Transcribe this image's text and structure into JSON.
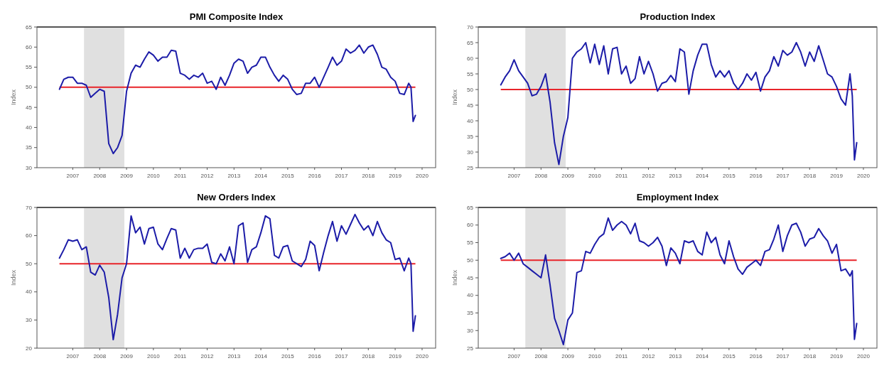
{
  "chart_data": [
    {
      "type": "line",
      "title": "PMI Composite Index",
      "ylabel": "Index",
      "grid": false,
      "x": [
        "2007-01",
        "2007-03",
        "2007-05",
        "2007-07",
        "2007-09",
        "2007-11",
        "2008-01",
        "2008-03",
        "2008-05",
        "2008-07",
        "2008-09",
        "2008-11",
        "2009-01",
        "2009-03",
        "2009-05",
        "2009-07",
        "2009-09",
        "2009-11",
        "2010-01",
        "2010-03",
        "2010-05",
        "2010-07",
        "2010-09",
        "2010-11",
        "2011-01",
        "2011-03",
        "2011-05",
        "2011-07",
        "2011-09",
        "2011-11",
        "2012-01",
        "2012-03",
        "2012-05",
        "2012-07",
        "2012-09",
        "2012-11",
        "2013-01",
        "2013-03",
        "2013-05",
        "2013-07",
        "2013-09",
        "2013-11",
        "2014-01",
        "2014-03",
        "2014-05",
        "2014-07",
        "2014-09",
        "2014-11",
        "2015-01",
        "2015-03",
        "2015-05",
        "2015-07",
        "2015-09",
        "2015-11",
        "2016-01",
        "2016-03",
        "2016-05",
        "2016-07",
        "2016-09",
        "2016-11",
        "2017-01",
        "2017-03",
        "2017-05",
        "2017-07",
        "2017-09",
        "2017-11",
        "2018-01",
        "2018-03",
        "2018-05",
        "2018-07",
        "2018-09",
        "2018-11",
        "2019-01",
        "2019-03",
        "2019-05",
        "2019-07",
        "2019-09",
        "2019-11",
        "2020-01",
        "2020-02",
        "2020-03",
        "2020-04"
      ],
      "series": [
        {
          "color": "#1c1ca8",
          "values": [
            49.5,
            52,
            52.5,
            52.5,
            51,
            51,
            50.5,
            47.5,
            48.5,
            49.5,
            49,
            36,
            33.5,
            35,
            38,
            49,
            53.5,
            55.5,
            55,
            57,
            58.8,
            58,
            56.5,
            57.5,
            57.5,
            59.2,
            59,
            53.5,
            53,
            52,
            53,
            52.5,
            53.5,
            51,
            51.5,
            49.5,
            52.5,
            50.5,
            53,
            56,
            57,
            56.5,
            53.5,
            55,
            55.5,
            57.5,
            57.5,
            55,
            53,
            51.5,
            53,
            52,
            49.5,
            48.2,
            48.5,
            51,
            51,
            52.5,
            50,
            52.5,
            55,
            57.5,
            55.5,
            56.5,
            59.5,
            58.5,
            59.2,
            60.5,
            58.5,
            60,
            60.5,
            58.2,
            55,
            54.5,
            52.5,
            51.5,
            48.5,
            48.2,
            51,
            50,
            41.5,
            43
          ]
        }
      ],
      "xlim": [
        "2006-03",
        "2021-01"
      ],
      "ylim": [
        30,
        65
      ],
      "yticks": [
        30,
        35,
        40,
        45,
        50,
        55,
        60,
        65
      ],
      "xticks": [
        {
          "value": "2007-07",
          "label": "2007"
        },
        {
          "value": "2008-07",
          "label": "2008"
        },
        {
          "value": "2009-07",
          "label": "2009"
        },
        {
          "value": "2010-07",
          "label": "2010"
        },
        {
          "value": "2011-07",
          "label": "2011"
        },
        {
          "value": "2012-07",
          "label": "2012"
        },
        {
          "value": "2013-07",
          "label": "2013"
        },
        {
          "value": "2014-07",
          "label": "2014"
        },
        {
          "value": "2015-07",
          "label": "2015"
        },
        {
          "value": "2016-07",
          "label": "2016"
        },
        {
          "value": "2017-07",
          "label": "2017"
        },
        {
          "value": "2018-07",
          "label": "2018"
        },
        {
          "value": "2019-07",
          "label": "2019"
        },
        {
          "value": "2020-07",
          "label": "2020"
        }
      ],
      "ref_lines": [
        {
          "axis": "y",
          "value": 50,
          "color": "#e8242a"
        }
      ],
      "bands": [
        {
          "axis": "x",
          "from": "2007-12",
          "to": "2009-06",
          "color": "#e0e0e0"
        }
      ]
    },
    {
      "type": "line",
      "title": "Production Index",
      "ylabel": "Index",
      "grid": false,
      "x": [
        "2007-01",
        "2007-03",
        "2007-05",
        "2007-07",
        "2007-09",
        "2007-11",
        "2008-01",
        "2008-03",
        "2008-05",
        "2008-07",
        "2008-09",
        "2008-11",
        "2009-01",
        "2009-03",
        "2009-05",
        "2009-07",
        "2009-09",
        "2009-11",
        "2010-01",
        "2010-03",
        "2010-05",
        "2010-07",
        "2010-09",
        "2010-11",
        "2011-01",
        "2011-03",
        "2011-05",
        "2011-07",
        "2011-09",
        "2011-11",
        "2012-01",
        "2012-03",
        "2012-05",
        "2012-07",
        "2012-09",
        "2012-11",
        "2013-01",
        "2013-03",
        "2013-05",
        "2013-07",
        "2013-09",
        "2013-11",
        "2014-01",
        "2014-03",
        "2014-05",
        "2014-07",
        "2014-09",
        "2014-11",
        "2015-01",
        "2015-03",
        "2015-05",
        "2015-07",
        "2015-09",
        "2015-11",
        "2016-01",
        "2016-03",
        "2016-05",
        "2016-07",
        "2016-09",
        "2016-11",
        "2017-01",
        "2017-03",
        "2017-05",
        "2017-07",
        "2017-09",
        "2017-11",
        "2018-01",
        "2018-03",
        "2018-05",
        "2018-07",
        "2018-09",
        "2018-11",
        "2019-01",
        "2019-03",
        "2019-05",
        "2019-07",
        "2019-09",
        "2019-11",
        "2020-01",
        "2020-02",
        "2020-03",
        "2020-04"
      ],
      "series": [
        {
          "color": "#1c1ca8",
          "values": [
            51.5,
            54,
            56,
            59.5,
            56,
            54,
            52,
            48,
            48.5,
            51,
            55,
            46,
            33,
            26,
            35,
            41,
            60,
            62,
            63,
            65,
            58.5,
            64.5,
            58,
            64,
            55,
            63,
            63.5,
            55,
            57.5,
            52,
            53.5,
            60.5,
            55,
            59,
            55,
            49.5,
            52,
            52.5,
            54.5,
            52.5,
            63,
            62,
            48.5,
            56,
            61,
            64.5,
            64.5,
            58,
            54,
            56,
            54,
            56,
            52,
            50,
            52,
            55,
            53,
            55.5,
            49.5,
            54,
            56,
            60.5,
            57.5,
            62.5,
            61,
            62,
            65,
            62,
            57.5,
            62,
            59,
            64,
            59.5,
            55,
            54,
            51,
            47,
            45,
            55,
            48,
            27.5,
            33
          ]
        }
      ],
      "xlim": [
        "2006-03",
        "2021-01"
      ],
      "ylim": [
        25,
        70
      ],
      "yticks": [
        25,
        30,
        35,
        40,
        45,
        50,
        55,
        60,
        65,
        70
      ],
      "xticks": [
        {
          "value": "2007-07",
          "label": "2007"
        },
        {
          "value": "2008-07",
          "label": "2008"
        },
        {
          "value": "2009-07",
          "label": "2009"
        },
        {
          "value": "2010-07",
          "label": "2010"
        },
        {
          "value": "2011-07",
          "label": "2011"
        },
        {
          "value": "2012-07",
          "label": "2012"
        },
        {
          "value": "2013-07",
          "label": "2013"
        },
        {
          "value": "2014-07",
          "label": "2014"
        },
        {
          "value": "2015-07",
          "label": "2015"
        },
        {
          "value": "2016-07",
          "label": "2016"
        },
        {
          "value": "2017-07",
          "label": "2017"
        },
        {
          "value": "2018-07",
          "label": "2018"
        },
        {
          "value": "2019-07",
          "label": "2019"
        },
        {
          "value": "2020-07",
          "label": "2020"
        }
      ],
      "ref_lines": [
        {
          "axis": "y",
          "value": 50,
          "color": "#e8242a"
        }
      ],
      "bands": [
        {
          "axis": "x",
          "from": "2007-12",
          "to": "2009-06",
          "color": "#e0e0e0"
        }
      ]
    },
    {
      "type": "line",
      "title": "New Orders Index",
      "ylabel": "Index",
      "grid": false,
      "x": [
        "2007-01",
        "2007-03",
        "2007-05",
        "2007-07",
        "2007-09",
        "2007-11",
        "2008-01",
        "2008-03",
        "2008-05",
        "2008-07",
        "2008-09",
        "2008-11",
        "2009-01",
        "2009-03",
        "2009-05",
        "2009-07",
        "2009-09",
        "2009-11",
        "2010-01",
        "2010-03",
        "2010-05",
        "2010-07",
        "2010-09",
        "2010-11",
        "2011-01",
        "2011-03",
        "2011-05",
        "2011-07",
        "2011-09",
        "2011-11",
        "2012-01",
        "2012-03",
        "2012-05",
        "2012-07",
        "2012-09",
        "2012-11",
        "2013-01",
        "2013-03",
        "2013-05",
        "2013-07",
        "2013-09",
        "2013-11",
        "2014-01",
        "2014-03",
        "2014-05",
        "2014-07",
        "2014-09",
        "2014-11",
        "2015-01",
        "2015-03",
        "2015-05",
        "2015-07",
        "2015-09",
        "2015-11",
        "2016-01",
        "2016-03",
        "2016-05",
        "2016-07",
        "2016-09",
        "2016-11",
        "2017-01",
        "2017-03",
        "2017-05",
        "2017-07",
        "2017-09",
        "2017-11",
        "2018-01",
        "2018-03",
        "2018-05",
        "2018-07",
        "2018-09",
        "2018-11",
        "2019-01",
        "2019-03",
        "2019-05",
        "2019-07",
        "2019-09",
        "2019-11",
        "2020-01",
        "2020-02",
        "2020-03",
        "2020-04"
      ],
      "series": [
        {
          "color": "#1c1ca8",
          "values": [
            52,
            55,
            58.5,
            58,
            58.5,
            55,
            56,
            47,
            46,
            49.5,
            47,
            38,
            23,
            32,
            45,
            50,
            67,
            61,
            63,
            57,
            62.5,
            63,
            57,
            55,
            59,
            62.5,
            62,
            52,
            55.5,
            52,
            55,
            55.5,
            55.5,
            57,
            50.5,
            50,
            53.5,
            51,
            56,
            50,
            63.5,
            64.5,
            50.5,
            55,
            56,
            61,
            67,
            66,
            53,
            52,
            56,
            56.5,
            51,
            50,
            49,
            51.5,
            58,
            56.5,
            47.5,
            54,
            60,
            65,
            58,
            63.5,
            60.5,
            64,
            67.5,
            64.5,
            62,
            63.5,
            60,
            65,
            61,
            58.5,
            57.5,
            51.5,
            52,
            47.5,
            52,
            50,
            26,
            31.5
          ]
        }
      ],
      "xlim": [
        "2006-03",
        "2021-01"
      ],
      "ylim": [
        20,
        70
      ],
      "yticks": [
        20,
        30,
        40,
        50,
        60,
        70
      ],
      "xticks": [
        {
          "value": "2007-07",
          "label": "2007"
        },
        {
          "value": "2008-07",
          "label": "2008"
        },
        {
          "value": "2009-07",
          "label": "2009"
        },
        {
          "value": "2010-07",
          "label": "2010"
        },
        {
          "value": "2011-07",
          "label": "2011"
        },
        {
          "value": "2012-07",
          "label": "2012"
        },
        {
          "value": "2013-07",
          "label": "2013"
        },
        {
          "value": "2014-07",
          "label": "2014"
        },
        {
          "value": "2015-07",
          "label": "2015"
        },
        {
          "value": "2016-07",
          "label": "2016"
        },
        {
          "value": "2017-07",
          "label": "2017"
        },
        {
          "value": "2018-07",
          "label": "2018"
        },
        {
          "value": "2019-07",
          "label": "2019"
        },
        {
          "value": "2020-07",
          "label": "2020"
        }
      ],
      "ref_lines": [
        {
          "axis": "y",
          "value": 50,
          "color": "#e8242a"
        }
      ],
      "bands": [
        {
          "axis": "x",
          "from": "2007-12",
          "to": "2009-06",
          "color": "#e0e0e0"
        }
      ]
    },
    {
      "type": "line",
      "title": "Employment Index",
      "ylabel": "Index",
      "grid": false,
      "x": [
        "2007-01",
        "2007-03",
        "2007-05",
        "2007-07",
        "2007-09",
        "2007-11",
        "2008-01",
        "2008-03",
        "2008-05",
        "2008-07",
        "2008-09",
        "2008-11",
        "2009-01",
        "2009-03",
        "2009-05",
        "2009-07",
        "2009-09",
        "2009-11",
        "2010-01",
        "2010-03",
        "2010-05",
        "2010-07",
        "2010-09",
        "2010-11",
        "2011-01",
        "2011-03",
        "2011-05",
        "2011-07",
        "2011-09",
        "2011-11",
        "2012-01",
        "2012-03",
        "2012-05",
        "2012-07",
        "2012-09",
        "2012-11",
        "2013-01",
        "2013-03",
        "2013-05",
        "2013-07",
        "2013-09",
        "2013-11",
        "2014-01",
        "2014-03",
        "2014-05",
        "2014-07",
        "2014-09",
        "2014-11",
        "2015-01",
        "2015-03",
        "2015-05",
        "2015-07",
        "2015-09",
        "2015-11",
        "2016-01",
        "2016-03",
        "2016-05",
        "2016-07",
        "2016-09",
        "2016-11",
        "2017-01",
        "2017-03",
        "2017-05",
        "2017-07",
        "2017-09",
        "2017-11",
        "2018-01",
        "2018-03",
        "2018-05",
        "2018-07",
        "2018-09",
        "2018-11",
        "2019-01",
        "2019-03",
        "2019-05",
        "2019-07",
        "2019-09",
        "2019-11",
        "2020-01",
        "2020-02",
        "2020-03",
        "2020-04"
      ],
      "series": [
        {
          "color": "#1c1ca8",
          "values": [
            50.5,
            51,
            52,
            50,
            52,
            49,
            48,
            47,
            46,
            45,
            51.5,
            43,
            33.5,
            30,
            26,
            33,
            35,
            46.5,
            47,
            52.5,
            52,
            54.5,
            56.5,
            57.5,
            62,
            58.5,
            60,
            61,
            60,
            57.5,
            60.5,
            55.5,
            55,
            54,
            55,
            56.5,
            54,
            48.5,
            53.5,
            52,
            49,
            55.5,
            55,
            55.5,
            52.5,
            51.5,
            58,
            55,
            56.5,
            51.5,
            49,
            55.5,
            51,
            47.5,
            46,
            48,
            49,
            50,
            48.5,
            52.5,
            53,
            56,
            60,
            52.5,
            57,
            60,
            60.5,
            58,
            54,
            56,
            56.5,
            59,
            57,
            55.5,
            52,
            54.5,
            47,
            47.5,
            45.5,
            47,
            27.5,
            32
          ]
        }
      ],
      "xlim": [
        "2006-03",
        "2021-01"
      ],
      "ylim": [
        25,
        65
      ],
      "yticks": [
        25,
        30,
        35,
        40,
        45,
        50,
        55,
        60,
        65
      ],
      "xticks": [
        {
          "value": "2007-07",
          "label": "2007"
        },
        {
          "value": "2008-07",
          "label": "2008"
        },
        {
          "value": "2009-07",
          "label": "2009"
        },
        {
          "value": "2010-07",
          "label": "2010"
        },
        {
          "value": "2011-07",
          "label": "2011"
        },
        {
          "value": "2012-07",
          "label": "2012"
        },
        {
          "value": "2013-07",
          "label": "2013"
        },
        {
          "value": "2014-07",
          "label": "2014"
        },
        {
          "value": "2015-07",
          "label": "2015"
        },
        {
          "value": "2016-07",
          "label": "2016"
        },
        {
          "value": "2017-07",
          "label": "2017"
        },
        {
          "value": "2018-07",
          "label": "2018"
        },
        {
          "value": "2019-07",
          "label": "2019"
        },
        {
          "value": "2020-07",
          "label": "2020"
        }
      ],
      "ref_lines": [
        {
          "axis": "y",
          "value": 50,
          "color": "#e8242a"
        }
      ],
      "bands": [
        {
          "axis": "x",
          "from": "2007-12",
          "to": "2009-06",
          "color": "#e0e0e0"
        }
      ]
    }
  ]
}
